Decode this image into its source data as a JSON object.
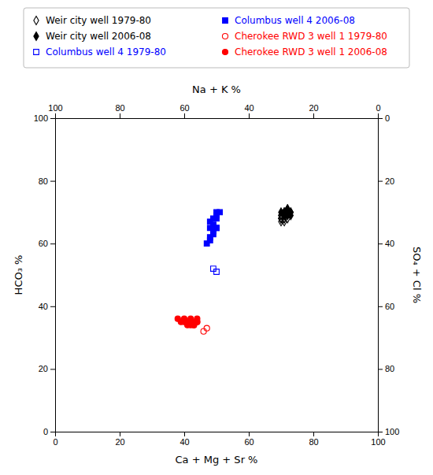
{
  "chart_data": {
    "type": "scatter",
    "xlabel": "Ca + Mg + Sr %",
    "x2label": "Na + K %",
    "ylabel": "HCO₃ %",
    "y2label": "SO₄ + Cl %",
    "xlim": [
      0,
      100
    ],
    "xticks": [
      0,
      20,
      40,
      60,
      80,
      100
    ],
    "x2lim": [
      100,
      0
    ],
    "x2ticks": [
      100,
      80,
      60,
      40,
      20,
      0
    ],
    "ylim": [
      0,
      100
    ],
    "yticks": [
      0,
      20,
      40,
      60,
      80,
      100
    ],
    "y2lim": [
      100,
      0
    ],
    "y2ticks": [
      0,
      20,
      40,
      60,
      80,
      100
    ],
    "grid": false,
    "legend": "top",
    "series": [
      {
        "name": "Weir city well 1979-80",
        "color": "#000000",
        "marker": "open-diamond",
        "x": [
          70,
          70,
          71,
          71,
          72,
          71,
          70,
          70,
          71,
          70,
          70,
          71
        ],
        "values": [
          69,
          68,
          69,
          67,
          68,
          69,
          68,
          69,
          68,
          67,
          68,
          68
        ]
      },
      {
        "name": "Weir city well 2006-08",
        "color": "#000000",
        "marker": "diamond",
        "x": [
          71,
          72,
          72,
          73,
          72,
          71,
          72,
          73,
          72,
          71,
          70,
          72,
          73
        ],
        "values": [
          70,
          71,
          70,
          69,
          70,
          69,
          71,
          70,
          69,
          70,
          70,
          71,
          70
        ]
      },
      {
        "name": "Columbus well 4 1979-80",
        "color": "#0000FF",
        "marker": "open-square",
        "x": [
          49,
          50
        ],
        "values": [
          52,
          51
        ]
      },
      {
        "name": "Columbus well 4 2006-08",
        "color": "#0000FF",
        "marker": "square",
        "x": [
          47,
          48,
          48,
          49,
          49,
          50,
          49,
          48,
          48,
          49,
          50,
          49,
          50,
          51,
          50,
          49,
          50
        ],
        "values": [
          60,
          62,
          61,
          63,
          64,
          65,
          66,
          67,
          65,
          64,
          65,
          66,
          68,
          70,
          69,
          68,
          70
        ]
      },
      {
        "name": "Cherokee RWD 3 well 1 1979-80",
        "color": "#FF0000",
        "marker": "open-circle",
        "x": [
          46,
          47
        ],
        "values": [
          32,
          33
        ]
      },
      {
        "name": "Cherokee RWD 3 well 1 2006-08",
        "color": "#FF0000",
        "marker": "circle",
        "x": [
          38,
          39,
          40,
          40,
          41,
          41,
          42,
          41,
          42,
          43,
          43,
          44,
          43,
          44,
          44
        ],
        "values": [
          36,
          35,
          36,
          35,
          34,
          35,
          34,
          35,
          36,
          35,
          34,
          35,
          34,
          35,
          36
        ]
      }
    ]
  }
}
